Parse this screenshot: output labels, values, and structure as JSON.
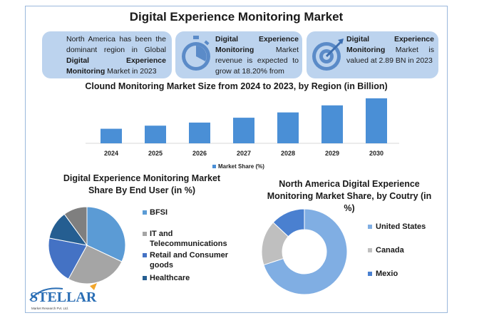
{
  "page": {
    "title": "Digital Experience Monitoring Market"
  },
  "cards": [
    {
      "pre": "North America has been the dominant region in Global ",
      "bold": "Digital Experience Monitoring",
      "post": " Market in 2023",
      "icon": "globe-icon"
    },
    {
      "pre": "",
      "bold": "Digital Experience Monitoring",
      "post": " Market revenue is expected to grow at 18.20% from",
      "icon": "stopwatch-icon"
    },
    {
      "pre": "",
      "bold": "Digital Experience Monitoring",
      "post": " Market is valued at 2.89 BN in 2023",
      "icon": "target-icon"
    }
  ],
  "colors": {
    "bar": "#4a8fd6",
    "bfsi": "#5b9bd5",
    "it": "#a5a5a5",
    "retail": "#4472c4",
    "healthcare": "#255e91",
    "other": "#7f7f7f",
    "us": "#80aee3",
    "canada": "#bfbfbf",
    "mexico": "#4a80d0",
    "card": "#bcd3ee"
  },
  "chart_data": [
    {
      "type": "bar",
      "title": "Clound Monitoring Market Size from 2024 to 2023, by Region (in Billion)",
      "categories": [
        "2024",
        "2025",
        "2026",
        "2027",
        "2028",
        "2029",
        "2030"
      ],
      "series": [
        {
          "name": "Market Share (%)",
          "values": [
            3.3,
            4.0,
            4.7,
            5.8,
            7.0,
            8.6,
            10.2
          ]
        }
      ],
      "ylim": [
        0,
        10.5
      ],
      "grid": false,
      "legend": "bottom"
    },
    {
      "type": "pie",
      "title": "Digital Experience Monitoring Market Share By End User (in %)",
      "labels": [
        "BFSI",
        "IT and Telecommunications",
        "Retail and Consumer goods",
        "Healthcare",
        ""
      ],
      "values": [
        32,
        26,
        20,
        12,
        10
      ],
      "legend": "right"
    },
    {
      "type": "pie",
      "title": "North America Digital Experience Monitoring Market Share, by Coutry (in %)",
      "labels": [
        "United States",
        "Canada",
        "Mexio"
      ],
      "values": [
        70,
        17,
        13
      ],
      "legend": "right"
    }
  ],
  "logo": {
    "name": "STELLAR",
    "sub": "Market Research Pvt. Ltd."
  }
}
